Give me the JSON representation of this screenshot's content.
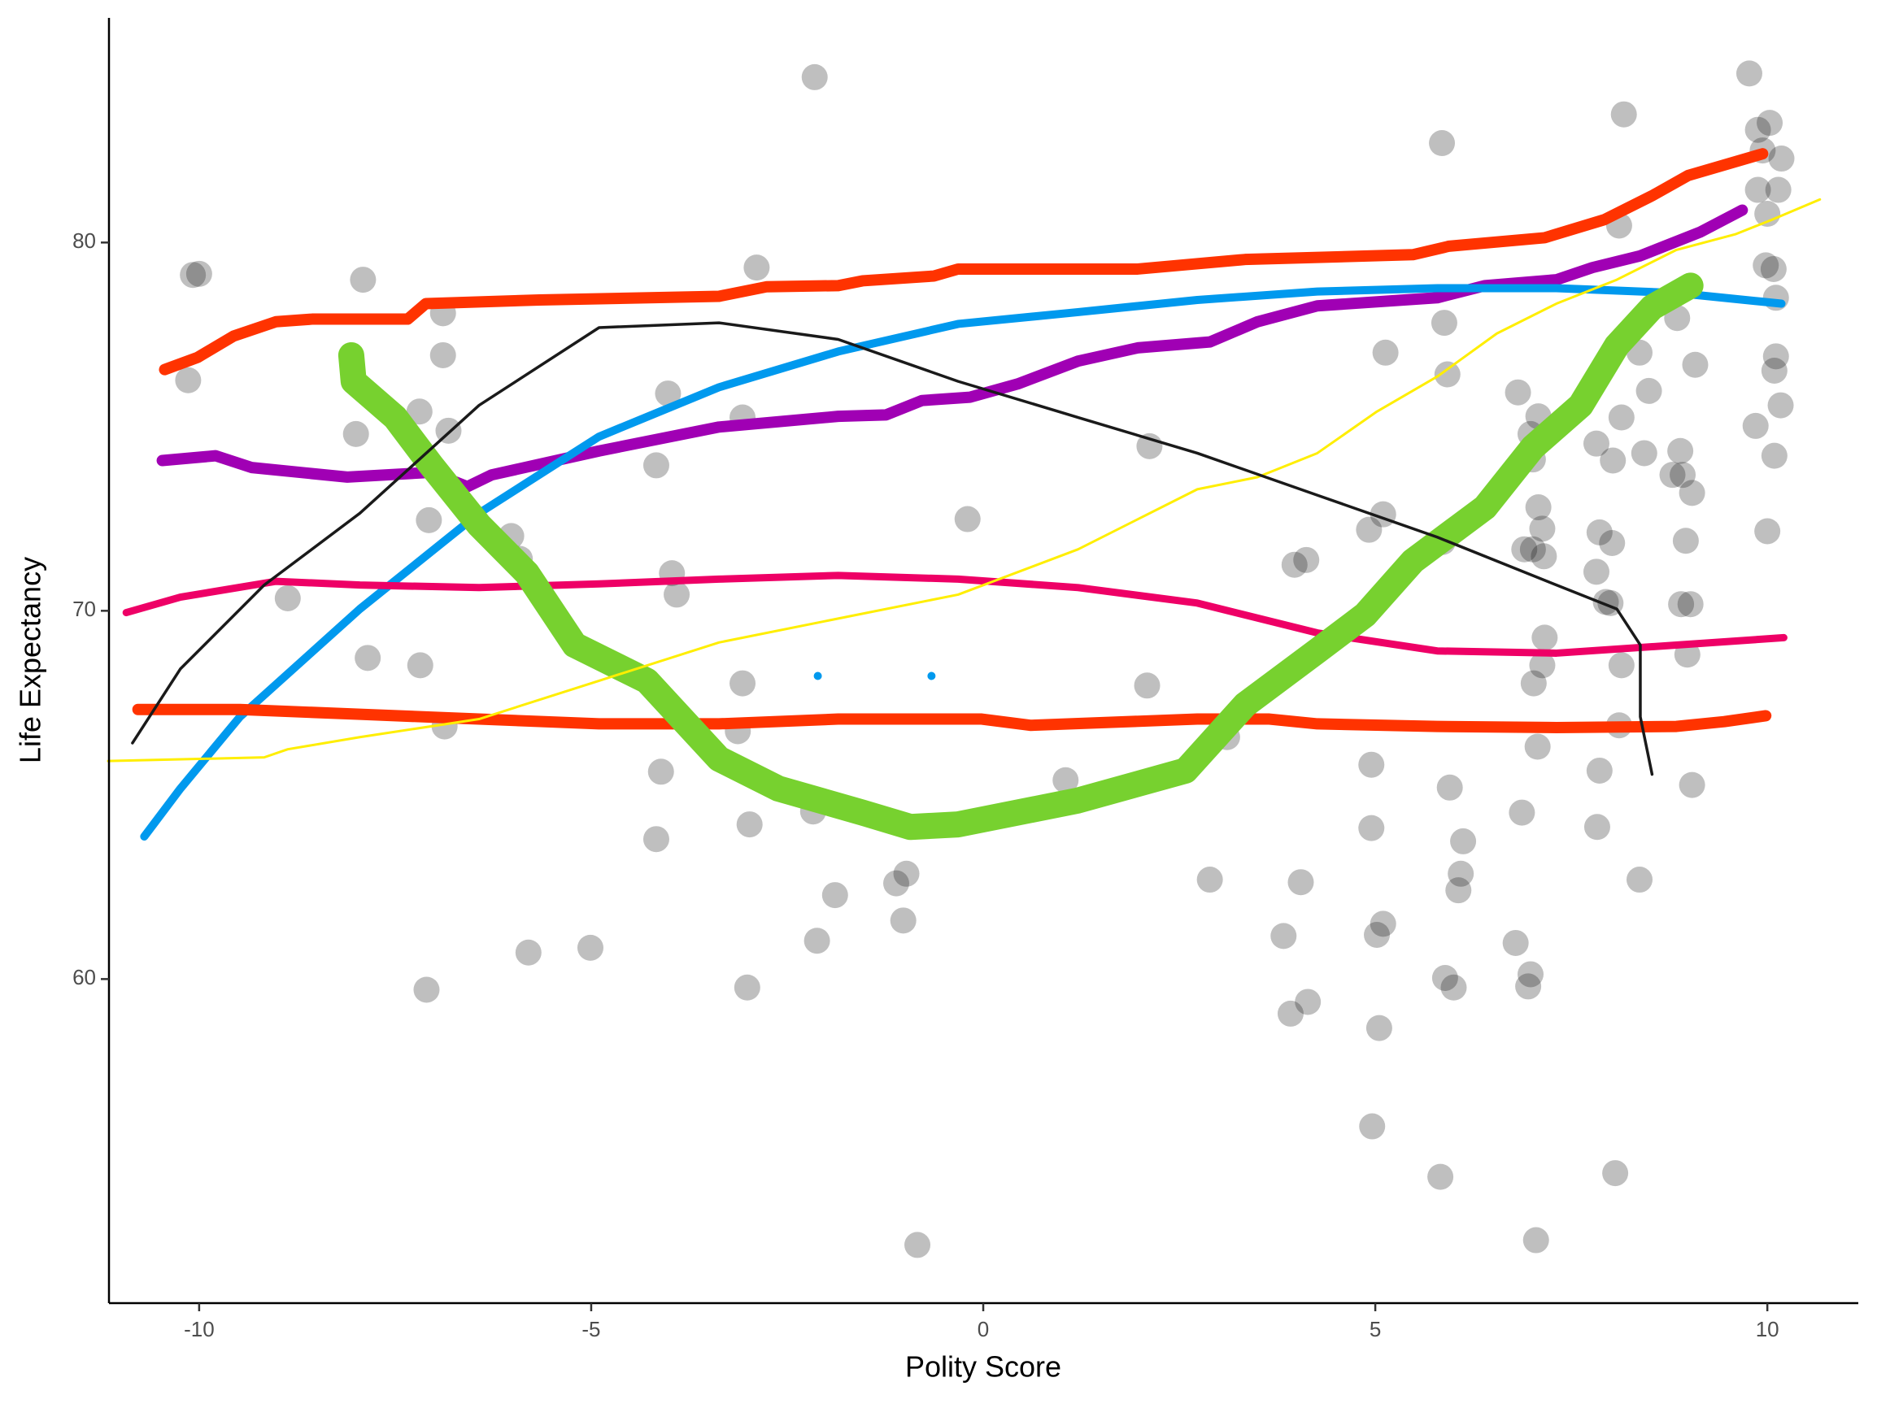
{
  "chart_data": {
    "type": "scatter",
    "xlabel": "Polity Score",
    "ylabel": "Life Expectancy",
    "xlim": [
      -11.15,
      11.16
    ],
    "ylim": [
      51.2,
      86.1
    ],
    "xticks": [
      -10,
      -5,
      0,
      5,
      10
    ],
    "yticks": [
      60,
      70,
      80
    ],
    "color": "#000000",
    "x": [
      -10.08,
      -10.0,
      -10.14,
      -7.91,
      -8.0,
      -6.89,
      -6.89,
      -7.19,
      -7.07,
      -6.82,
      -6.02,
      -5.91,
      -8.87,
      -7.85,
      -7.18,
      -6.87,
      -7.1,
      -5.8,
      -5.01,
      -4.02,
      -4.17,
      -3.97,
      -3.91,
      -3.07,
      -2.89,
      -2.15,
      -3.13,
      -3.07,
      -2.98,
      -3.01,
      -4.11,
      -4.17,
      -2.17,
      -2.12,
      -1.89,
      -0.98,
      -1.11,
      -1.02,
      -0.84,
      -0.2,
      2.12,
      2.09,
      1.05,
      2.89,
      3.11,
      3.97,
      4.12,
      5.1,
      4.92,
      5.13,
      5.85,
      5.88,
      5.92,
      5.86,
      4.95,
      4.95,
      4.05,
      3.83,
      3.92,
      4.14,
      5.1,
      5.02,
      5.05,
      4.96,
      5.83,
      5.95,
      6.06,
      6.12,
      6.09,
      5.89,
      6.0,
      6.82,
      6.98,
      7.08,
      7.01,
      7.08,
      7.13,
      7.15,
      7.01,
      6.9,
      7.16,
      7.02,
      7.13,
      7.07,
      6.87,
      6.79,
      6.98,
      6.95,
      7.05,
      8.17,
      8.11,
      8.14,
      8.03,
      7.82,
      7.86,
      8.02,
      7.82,
      7.94,
      8.0,
      8.14,
      8.11,
      7.86,
      7.83,
      8.37,
      8.06,
      8.37,
      8.49,
      8.85,
      9.08,
      8.89,
      8.43,
      8.79,
      8.92,
      9.04,
      8.96,
      8.9,
      9.02,
      8.98,
      9.04,
      9.77,
      9.88,
      10.03,
      9.94,
      10.18,
      9.88,
      10.14,
      10.0,
      9.98,
      10.08,
      10.11,
      10.11,
      10.09,
      10.17,
      10.09,
      9.85,
      10.0
    ],
    "values": [
      79.12,
      79.15,
      76.26,
      78.99,
      74.8,
      78.08,
      76.94,
      75.41,
      72.46,
      74.89,
      72.03,
      71.41,
      70.34,
      68.72,
      68.52,
      66.86,
      59.71,
      60.72,
      60.85,
      75.9,
      73.95,
      71.02,
      70.44,
      75.25,
      79.32,
      84.49,
      66.73,
      68.03,
      64.2,
      59.77,
      65.63,
      63.8,
      64.55,
      61.04,
      62.28,
      62.86,
      62.6,
      61.59,
      52.78,
      72.49,
      74.47,
      67.97,
      65.4,
      62.7,
      66.57,
      71.25,
      71.38,
      72.62,
      72.2,
      77.01,
      82.7,
      77.82,
      76.42,
      71.87,
      65.82,
      64.1,
      62.63,
      61.17,
      59.06,
      59.38,
      61.5,
      61.2,
      58.67,
      56.0,
      54.63,
      65.2,
      62.41,
      63.74,
      62.86,
      60.03,
      59.77,
      75.93,
      74.8,
      75.28,
      74.11,
      72.81,
      72.23,
      71.48,
      71.67,
      71.67,
      69.27,
      68.03,
      68.52,
      66.31,
      64.52,
      60.98,
      60.13,
      59.8,
      52.91,
      83.48,
      80.46,
      75.25,
      74.08,
      74.54,
      72.13,
      71.84,
      71.06,
      70.24,
      70.21,
      68.52,
      66.89,
      65.66,
      64.13,
      62.7,
      54.73,
      77.01,
      75.97,
      77.95,
      76.68,
      74.34,
      74.28,
      73.69,
      73.69,
      73.2,
      71.9,
      70.18,
      70.18,
      68.81,
      65.27,
      84.59,
      83.06,
      83.25,
      82.5,
      82.28,
      81.43,
      81.43,
      80.78,
      79.38,
      79.28,
      78.5,
      76.91,
      76.52,
      75.58,
      74.21,
      75.02,
      72.16
    ],
    "lines": [
      {
        "color": "#ff3300",
        "x": [
          -10.44,
          -10.02,
          -9.56,
          -9.02,
          -8.56,
          -7.34,
          -7.11,
          -5.66,
          -3.37,
          -2.76,
          -1.85,
          -1.54,
          -0.63,
          -0.32,
          1.97,
          3.34,
          5.48,
          5.94,
          7.16,
          7.92,
          8.53,
          8.99,
          9.94
        ],
        "values": [
          76.55,
          76.88,
          77.46,
          77.85,
          77.92,
          77.92,
          78.34,
          78.44,
          78.54,
          78.8,
          78.83,
          78.96,
          79.09,
          79.28,
          79.28,
          79.54,
          79.67,
          79.9,
          80.13,
          80.62,
          81.27,
          81.82,
          82.41
        ]
      },
      {
        "color": "#a000b4",
        "x": [
          -10.47,
          -9.79,
          -9.33,
          -8.11,
          -7.04,
          -6.58,
          -6.27,
          -4.9,
          -3.37,
          -1.85,
          -1.24,
          -0.78,
          -0.17,
          0.44,
          1.21,
          1.97,
          2.89,
          3.5,
          4.26,
          5.79,
          6.4,
          7.31,
          7.77,
          8.38,
          9.15,
          9.68
        ],
        "values": [
          74.08,
          74.21,
          73.89,
          73.63,
          73.76,
          73.37,
          73.69,
          74.34,
          74.99,
          75.28,
          75.32,
          75.71,
          75.8,
          76.16,
          76.78,
          77.14,
          77.3,
          77.85,
          78.28,
          78.5,
          78.83,
          78.99,
          79.32,
          79.64,
          80.29,
          80.88
        ]
      },
      {
        "color": "#0099ee",
        "x": [
          -10.7,
          -10.24,
          -9.48,
          -7.95,
          -6.43,
          -4.9,
          -3.37,
          -1.85,
          -0.32,
          1.21,
          2.73,
          4.26,
          5.79,
          7.31,
          8.84,
          10.18,
          null,
          -2.11,
          null,
          -0.66
        ],
        "values": [
          63.87,
          65.17,
          67.12,
          70.05,
          72.65,
          74.73,
          76.07,
          77.04,
          77.79,
          78.11,
          78.44,
          78.67,
          78.76,
          78.76,
          78.63,
          78.34,
          null,
          68.23,
          null,
          68.23
        ]
      },
      {
        "color": "#ee0066",
        "x": [
          -10.93,
          -10.24,
          -9.02,
          -7.95,
          -6.43,
          -4.9,
          -3.37,
          -1.85,
          -0.32,
          1.21,
          2.73,
          4.26,
          5.79,
          7.31,
          8.84,
          10.21
        ],
        "values": [
          69.95,
          70.37,
          70.8,
          70.7,
          70.63,
          70.73,
          70.86,
          70.96,
          70.86,
          70.63,
          70.21,
          69.4,
          68.91,
          68.85,
          69.07,
          69.27
        ]
      },
      {
        "color": "#ff3300",
        "x": [
          -10.78,
          -9.48,
          -7.95,
          -6.43,
          -4.9,
          -3.37,
          -1.85,
          -0.02,
          0.6,
          2.73,
          3.65,
          4.26,
          5.79,
          7.31,
          8.84,
          9.45,
          9.98
        ],
        "values": [
          67.32,
          67.32,
          67.19,
          67.06,
          66.93,
          66.93,
          67.06,
          67.06,
          66.89,
          67.06,
          67.06,
          66.93,
          66.86,
          66.83,
          66.86,
          66.99,
          67.15
        ]
      },
      {
        "color": "#77d12f",
        "x": [
          -8.06,
          -8.03,
          -7.5,
          -7.04,
          -6.43,
          -5.82,
          -5.21,
          -4.29,
          -3.37,
          -2.61,
          -1.54,
          -0.93,
          -0.32,
          1.21,
          2.58,
          3.34,
          4.26,
          4.87,
          5.48,
          6.4,
          7.01,
          7.62,
          8.08,
          8.53,
          9.02
        ],
        "values": [
          76.94,
          76.23,
          75.25,
          73.95,
          72.33,
          71.02,
          69.07,
          68.1,
          65.98,
          65.17,
          64.52,
          64.13,
          64.2,
          64.85,
          65.66,
          67.45,
          68.91,
          69.89,
          71.35,
          72.81,
          74.44,
          75.58,
          77.2,
          78.24,
          78.83
        ]
      },
      {
        "color": "#ffee00",
        "x": [
          -11.16,
          -9.17,
          -8.87,
          -7.95,
          -6.43,
          -4.9,
          -3.37,
          -1.85,
          -0.32,
          1.21,
          2.73,
          3.5,
          4.26,
          5.02,
          5.79,
          6.55,
          7.31,
          8.08,
          8.84,
          9.6,
          10.06,
          10.67
        ],
        "values": [
          65.92,
          66.02,
          66.24,
          66.57,
          67.06,
          68.1,
          69.14,
          69.79,
          70.44,
          71.67,
          73.3,
          73.63,
          74.28,
          75.41,
          76.36,
          77.53,
          78.34,
          78.99,
          79.8,
          80.23,
          80.62,
          81.17
        ]
      },
      {
        "color": "#1a1a1a",
        "x": [
          -10.85,
          -10.24,
          -9.17,
          -7.95,
          -6.43,
          -4.9,
          -3.37,
          -1.85,
          -0.32,
          1.21,
          2.73,
          4.26,
          5.79,
          7.31,
          8.08,
          8.38,
          8.38,
          8.53
        ],
        "values": [
          66.41,
          68.42,
          70.7,
          72.65,
          75.58,
          77.69,
          77.82,
          77.37,
          76.23,
          75.25,
          74.28,
          73.14,
          72.0,
          70.7,
          70.05,
          69.07,
          67.12,
          65.56
        ]
      }
    ]
  }
}
